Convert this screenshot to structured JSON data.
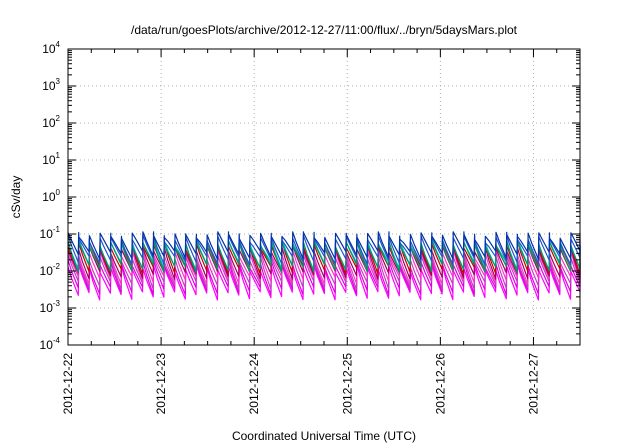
{
  "chart_data": {
    "type": "line",
    "title": "/data/run/goesPlots/archive/2012-12-27/11:00/flux/../bryn/5daysMars.plot",
    "xlabel": "Coordinated Universal Time (UTC)",
    "ylabel": "cSv/day",
    "yscale": "log",
    "ylim": [
      0.0001,
      10000
    ],
    "xlim": [
      "2012-12-22 00:00",
      "2012-12-27 12:00"
    ],
    "grid": true,
    "legend": "none",
    "x_tick_labels": [
      "2012-12-22",
      "2012-12-23",
      "2012-12-24",
      "2012-12-25",
      "2012-12-26",
      "2012-12-27"
    ],
    "y_tick_labels": [
      {
        "base": "10",
        "exp": "-4"
      },
      {
        "base": "10",
        "exp": "-3"
      },
      {
        "base": "10",
        "exp": "-2"
      },
      {
        "base": "10",
        "exp": "-1"
      },
      {
        "base": "10",
        "exp": "0"
      },
      {
        "base": "10",
        "exp": "1"
      },
      {
        "base": "10",
        "exp": "2"
      },
      {
        "base": "10",
        "exp": "3"
      },
      {
        "base": "10",
        "exp": "4"
      }
    ],
    "pattern": {
      "shape": "sawtooth",
      "cycles_per_day": 8.7,
      "peak_range": [
        0.01,
        0.1
      ],
      "trough_range": [
        0.002,
        0.03
      ]
    },
    "series": [
      {
        "color": "#ff00ff",
        "peak": 0.012,
        "trough": 0.0022
      },
      {
        "color": "#e000e0",
        "peak": 0.016,
        "trough": 0.003
      },
      {
        "color": "#c040c0",
        "peak": 0.022,
        "trough": 0.0042
      },
      {
        "color": "#ff33cc",
        "peak": 0.03,
        "trough": 0.0058
      },
      {
        "color": "#a00060",
        "peak": 0.04,
        "trough": 0.008
      },
      {
        "color": "#cc0000",
        "peak": 0.052,
        "trough": 0.011
      },
      {
        "color": "#00bbbb",
        "peak": 0.06,
        "trough": 0.014
      },
      {
        "color": "#009966",
        "peak": 0.055,
        "trough": 0.012
      },
      {
        "color": "#2255cc",
        "peak": 0.075,
        "trough": 0.02
      },
      {
        "color": "#0033aa",
        "peak": 0.095,
        "trough": 0.028
      }
    ]
  }
}
